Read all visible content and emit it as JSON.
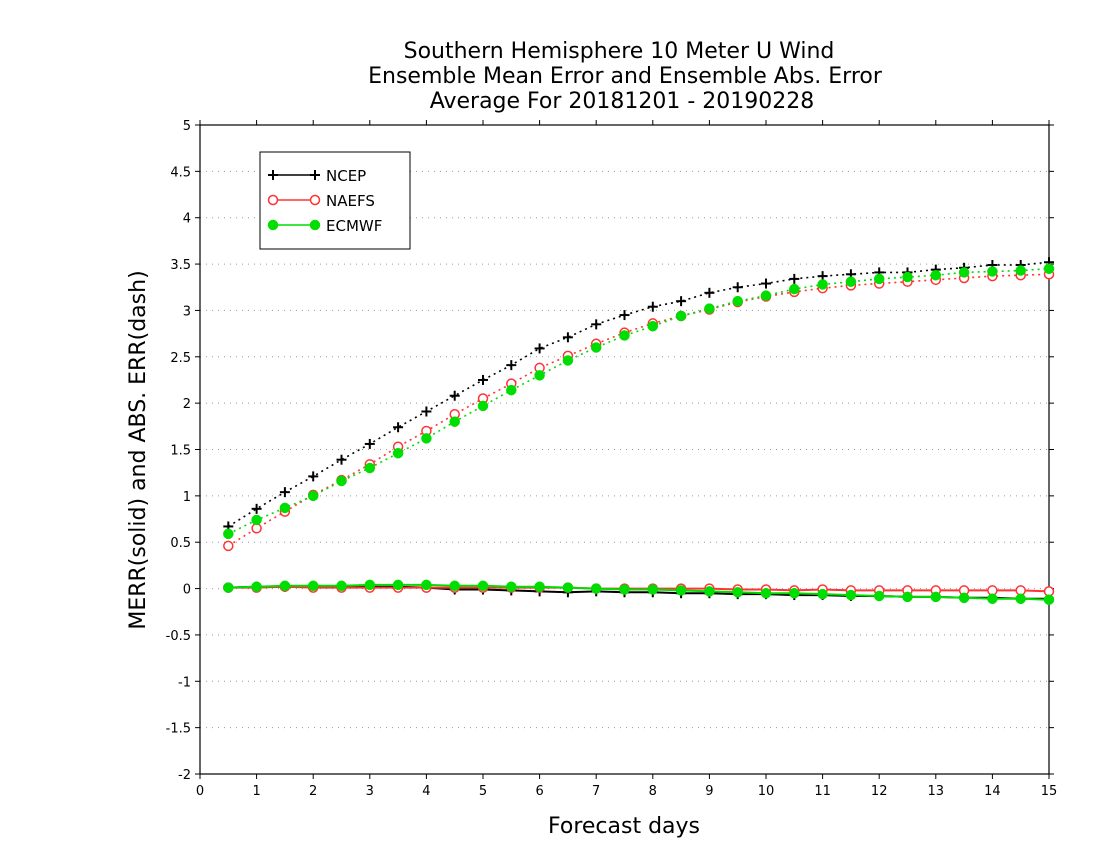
{
  "chart_data": {
    "type": "line",
    "title_lines": [
      "Southern Hemisphere 10 Meter U Wind",
      "Ensemble Mean Error and Ensemble Abs. Error",
      "Average For 20181201 - 20190228"
    ],
    "xlabel": "Forecast days",
    "ylabel": "MERR(solid) and ABS. ERR(dash)",
    "xlim": [
      0,
      15
    ],
    "ylim": [
      -2,
      5
    ],
    "xticks": [
      "0",
      "1",
      "2",
      "3",
      "4",
      "5",
      "6",
      "7",
      "8",
      "9",
      "10",
      "11",
      "12",
      "13",
      "14",
      "15"
    ],
    "yticks": [
      "-2",
      "-1.5",
      "-1",
      "-0.5",
      "0",
      "0.5",
      "1",
      "1.5",
      "2",
      "2.5",
      "3",
      "3.5",
      "4",
      "4.5",
      "5"
    ],
    "grid": "horizontal dotted",
    "legend_position": "top-left",
    "x": [
      0.5,
      1,
      1.5,
      2,
      2.5,
      3,
      3.5,
      4,
      4.5,
      5,
      5.5,
      6,
      6.5,
      7,
      7.5,
      8,
      8.5,
      9,
      9.5,
      10,
      10.5,
      11,
      11.5,
      12,
      12.5,
      13,
      13.5,
      14,
      14.5,
      15
    ],
    "series": [
      {
        "name": "NCEP",
        "color": "#000000",
        "marker": "plus",
        "abs_err": [
          0.67,
          0.86,
          1.04,
          1.21,
          1.39,
          1.56,
          1.74,
          1.91,
          2.08,
          2.25,
          2.41,
          2.59,
          2.71,
          2.85,
          2.95,
          3.04,
          3.1,
          3.19,
          3.25,
          3.29,
          3.34,
          3.37,
          3.39,
          3.41,
          3.41,
          3.44,
          3.46,
          3.49,
          3.49,
          3.52
        ],
        "mean_err": [
          0.01,
          0.02,
          0.02,
          0.02,
          0.02,
          0.02,
          0.02,
          0.01,
          -0.01,
          -0.01,
          -0.02,
          -0.03,
          -0.04,
          -0.03,
          -0.04,
          -0.04,
          -0.05,
          -0.05,
          -0.06,
          -0.06,
          -0.07,
          -0.07,
          -0.08,
          -0.08,
          -0.09,
          -0.09,
          -0.1,
          -0.1,
          -0.11,
          -0.11
        ]
      },
      {
        "name": "NAEFS",
        "color": "#ff3333",
        "marker": "open-circle",
        "abs_err": [
          0.46,
          0.65,
          0.83,
          1.01,
          1.17,
          1.34,
          1.53,
          1.7,
          1.88,
          2.05,
          2.21,
          2.38,
          2.51,
          2.64,
          2.76,
          2.86,
          2.94,
          3.01,
          3.09,
          3.15,
          3.2,
          3.24,
          3.27,
          3.29,
          3.31,
          3.33,
          3.35,
          3.37,
          3.38,
          3.39
        ],
        "mean_err": [
          0.01,
          0.01,
          0.02,
          0.01,
          0.01,
          0.01,
          0.01,
          0.01,
          0.01,
          0.01,
          0.01,
          0.01,
          0.01,
          0.0,
          0.0,
          0.0,
          0.0,
          0.0,
          -0.01,
          -0.01,
          -0.02,
          -0.01,
          -0.02,
          -0.02,
          -0.02,
          -0.02,
          -0.02,
          -0.02,
          -0.02,
          -0.03
        ]
      },
      {
        "name": "ECMWF",
        "color": "#00dd00",
        "marker": "filled-circle",
        "abs_err": [
          0.59,
          0.74,
          0.87,
          1.0,
          1.16,
          1.3,
          1.46,
          1.62,
          1.8,
          1.97,
          2.14,
          2.3,
          2.46,
          2.6,
          2.73,
          2.83,
          2.94,
          3.02,
          3.1,
          3.16,
          3.23,
          3.28,
          3.31,
          3.34,
          3.36,
          3.38,
          3.41,
          3.42,
          3.43,
          3.45
        ],
        "mean_err": [
          0.01,
          0.02,
          0.03,
          0.03,
          0.03,
          0.04,
          0.04,
          0.04,
          0.03,
          0.03,
          0.02,
          0.02,
          0.01,
          0.0,
          -0.01,
          -0.01,
          -0.02,
          -0.03,
          -0.04,
          -0.05,
          -0.05,
          -0.06,
          -0.07,
          -0.08,
          -0.09,
          -0.09,
          -0.1,
          -0.11,
          -0.11,
          -0.12
        ]
      }
    ]
  }
}
